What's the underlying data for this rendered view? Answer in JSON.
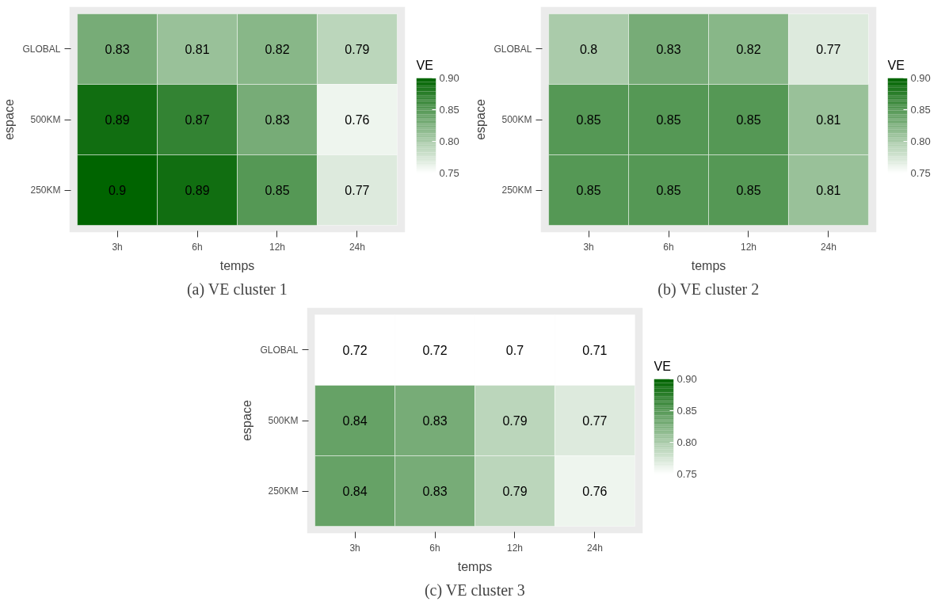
{
  "chart_data": [
    {
      "type": "heatmap",
      "title": "(a) VE cluster 1",
      "xlabel": "temps",
      "ylabel": "espace",
      "clabel": "VE",
      "categories": [
        "3h",
        "6h",
        "12h",
        "24h"
      ],
      "y_categories": [
        "GLOBAL",
        "500KM",
        "250KM"
      ],
      "cells": [
        [
          0.83,
          0.81,
          0.82,
          0.79
        ],
        [
          0.89,
          0.87,
          0.83,
          0.76
        ],
        [
          0.9,
          0.89,
          0.85,
          0.77
        ]
      ],
      "clim": [
        0.75,
        0.9
      ],
      "cticks": [
        {
          "value": 0.75,
          "label": "0.75"
        },
        {
          "value": 0.8,
          "label": "0.80"
        },
        {
          "value": 0.85,
          "label": "0.85"
        },
        {
          "value": 0.9,
          "label": "0.90"
        }
      ],
      "data_labels": true
    },
    {
      "type": "heatmap",
      "title": "(b) VE cluster 2",
      "xlabel": "temps",
      "ylabel": "espace",
      "clabel": "VE",
      "categories": [
        "3h",
        "6h",
        "12h",
        "24h"
      ],
      "y_categories": [
        "GLOBAL",
        "500KM",
        "250KM"
      ],
      "cells": [
        [
          0.8,
          0.83,
          0.82,
          0.77
        ],
        [
          0.85,
          0.85,
          0.85,
          0.81
        ],
        [
          0.85,
          0.85,
          0.85,
          0.81
        ]
      ],
      "clim": [
        0.75,
        0.9
      ],
      "cticks": [
        {
          "value": 0.75,
          "label": "0.75"
        },
        {
          "value": 0.8,
          "label": "0.80"
        },
        {
          "value": 0.85,
          "label": "0.85"
        },
        {
          "value": 0.9,
          "label": "0.90"
        }
      ],
      "data_labels": true
    },
    {
      "type": "heatmap",
      "title": "(c) VE cluster 3",
      "xlabel": "temps",
      "ylabel": "espace",
      "clabel": "VE",
      "categories": [
        "3h",
        "6h",
        "12h",
        "24h"
      ],
      "y_categories": [
        "GLOBAL",
        "500KM",
        "250KM"
      ],
      "cells": [
        [
          0.72,
          0.72,
          0.7,
          0.71
        ],
        [
          0.84,
          0.83,
          0.79,
          0.77
        ],
        [
          0.84,
          0.83,
          0.79,
          0.76
        ]
      ],
      "clim": [
        0.75,
        0.9
      ],
      "cticks": [
        {
          "value": 0.75,
          "label": "0.75"
        },
        {
          "value": 0.8,
          "label": "0.80"
        },
        {
          "value": 0.85,
          "label": "0.85"
        },
        {
          "value": 0.9,
          "label": "0.90"
        }
      ],
      "data_labels": true
    }
  ]
}
